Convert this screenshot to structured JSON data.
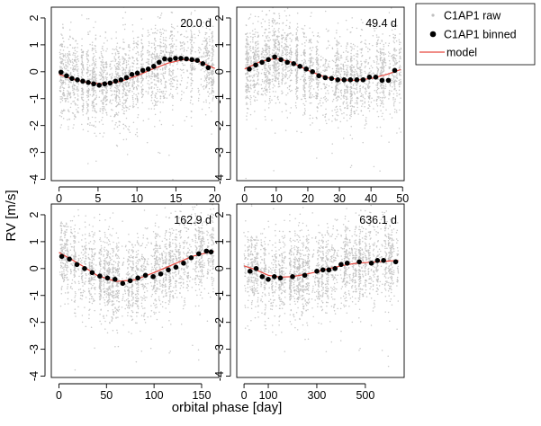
{
  "colors": {
    "raw": "#c0c0c0",
    "binned": "#000000",
    "model": "#e8483f"
  },
  "chart_data": {
    "type": "scatter",
    "xlabel": "orbital phase [day]",
    "ylabel": "RV [m/s]",
    "grid": false,
    "legend": {
      "placement": "top-right, outside panels",
      "entries": [
        {
          "name": "C1AP1 raw",
          "marker": "small grey dot"
        },
        {
          "name": "C1AP1 binned",
          "marker": "black filled circle"
        },
        {
          "name": "model",
          "marker": "red line"
        }
      ]
    },
    "panels": [
      {
        "label": "20.0 d",
        "xlim": [
          -1,
          20.5
        ],
        "ylim": [
          -4.05,
          2.4
        ],
        "xticks": [
          0,
          5,
          10,
          15,
          20
        ],
        "yticks": [
          -4,
          -3,
          -2,
          -1,
          0,
          1,
          2
        ],
        "binned": {
          "x": [
            0.25,
            0.95,
            1.65,
            2.35,
            3.05,
            3.75,
            4.45,
            5.15,
            5.85,
            6.55,
            7.25,
            7.95,
            8.65,
            9.35,
            10.05,
            10.75,
            11.45,
            12.15,
            12.85,
            13.55,
            14.25,
            14.95,
            15.65,
            16.35,
            17.05,
            17.75,
            18.45,
            19.15
          ],
          "y": [
            -0.02,
            -0.15,
            -0.25,
            -0.3,
            -0.35,
            -0.4,
            -0.45,
            -0.5,
            -0.45,
            -0.42,
            -0.35,
            -0.3,
            -0.22,
            -0.1,
            -0.05,
            0.05,
            0.1,
            0.2,
            0.35,
            0.48,
            0.45,
            0.5,
            0.5,
            0.48,
            0.45,
            0.42,
            0.3,
            0.15
          ]
        },
        "model": {
          "x": [
            0,
            2,
            4,
            6,
            8,
            10,
            12,
            14,
            16,
            18,
            20
          ],
          "y": [
            -0.1,
            -0.3,
            -0.42,
            -0.45,
            -0.35,
            -0.15,
            0.1,
            0.32,
            0.45,
            0.38,
            0.12
          ]
        }
      },
      {
        "label": "49.4 d",
        "xlim": [
          -2.5,
          50.5
        ],
        "ylim": [
          -4.05,
          2.4
        ],
        "xticks": [
          0,
          10,
          20,
          30,
          40,
          50
        ],
        "yticks": [
          -4,
          -3,
          -2,
          -1,
          0,
          1,
          2
        ],
        "binned": {
          "x": [
            1.5,
            3.5,
            5.5,
            7.5,
            9.5,
            11.5,
            13.5,
            15.5,
            17.5,
            19.5,
            21.5,
            23.5,
            25.5,
            27.5,
            29.5,
            31.5,
            33.5,
            35.5,
            37.5,
            39.5,
            41.5,
            43.5,
            45.5,
            47.5
          ],
          "y": [
            0.1,
            0.25,
            0.35,
            0.45,
            0.55,
            0.45,
            0.35,
            0.3,
            0.2,
            0.1,
            0.0,
            -0.15,
            -0.22,
            -0.25,
            -0.3,
            -0.3,
            -0.3,
            -0.3,
            -0.3,
            -0.2,
            -0.2,
            -0.32,
            -0.32,
            0.05
          ]
        },
        "model": {
          "x": [
            0,
            5,
            10,
            15,
            20,
            25,
            30,
            35,
            40,
            45,
            49.4
          ],
          "y": [
            0.1,
            0.38,
            0.5,
            0.35,
            0.05,
            -0.18,
            -0.3,
            -0.32,
            -0.25,
            -0.1,
            0.08
          ]
        }
      },
      {
        "label": "162.9 d",
        "xlim": [
          -8,
          168
        ],
        "ylim": [
          -4.05,
          2.4
        ],
        "xticks": [
          0,
          50,
          100,
          150
        ],
        "yticks": [
          -4,
          -3,
          -2,
          -1,
          0,
          1,
          2
        ],
        "binned": {
          "x": [
            3,
            11,
            19,
            27,
            35,
            43,
            51,
            59,
            67,
            75,
            83,
            91,
            99,
            107,
            115,
            123,
            131,
            139,
            147,
            155,
            160
          ],
          "y": [
            0.45,
            0.35,
            0.15,
            0.0,
            -0.15,
            -0.28,
            -0.35,
            -0.4,
            -0.55,
            -0.45,
            -0.35,
            -0.25,
            -0.3,
            -0.2,
            -0.05,
            0.05,
            0.2,
            0.4,
            0.55,
            0.65,
            0.62
          ]
        },
        "model": {
          "x": [
            0,
            20,
            40,
            60,
            80,
            100,
            120,
            140,
            162.9
          ],
          "y": [
            0.6,
            0.2,
            -0.25,
            -0.48,
            -0.42,
            -0.15,
            0.15,
            0.45,
            0.65
          ]
        }
      },
      {
        "label": "636.1 d",
        "xlim": [
          -30,
          660
        ],
        "ylim": [
          -4.05,
          2.4
        ],
        "xticks": [
          0,
          100,
          300,
          500
        ],
        "yticks": [
          -4,
          -3,
          -2,
          -1,
          0,
          1,
          2
        ],
        "binned": {
          "x": [
            25,
            50,
            75,
            100,
            125,
            150,
            200,
            250,
            300,
            325,
            350,
            375,
            400,
            425,
            475,
            525,
            550,
            575,
            625
          ],
          "y": [
            -0.1,
            0.0,
            -0.3,
            -0.4,
            -0.3,
            -0.35,
            -0.3,
            -0.25,
            -0.1,
            -0.05,
            -0.05,
            0.0,
            0.15,
            0.2,
            0.25,
            0.2,
            0.3,
            0.3,
            0.25
          ]
        },
        "model": {
          "x": [
            0,
            50,
            100,
            150,
            200,
            250,
            300,
            350,
            400,
            450,
            500,
            550,
            600,
            636.1
          ],
          "y": [
            0.1,
            -0.05,
            -0.25,
            -0.32,
            -0.3,
            -0.22,
            -0.12,
            0.0,
            0.1,
            0.18,
            0.22,
            0.25,
            0.28,
            0.3
          ]
        }
      }
    ]
  }
}
